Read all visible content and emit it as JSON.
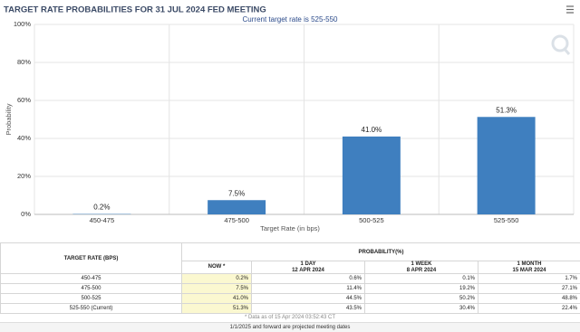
{
  "chart_data": {
    "type": "bar",
    "title": "TARGET RATE PROBABILITIES FOR 31 JUL 2024 FED MEETING",
    "subtitle": "Current target rate is 525-550",
    "x_label": "Target Rate (in bps)",
    "y_label": "Probability",
    "categories": [
      "450-475",
      "475-500",
      "500-525",
      "525-550"
    ],
    "values": [
      0.2,
      7.5,
      41.0,
      51.3
    ],
    "value_labels": [
      "0.2%",
      "7.5%",
      "41.0%",
      "51.3%"
    ],
    "color": "#3f7fbf",
    "ylim": [
      0,
      100
    ],
    "yticks": [
      {
        "value": 0,
        "label": "0%"
      },
      {
        "value": 20,
        "label": "20%"
      },
      {
        "value": 40,
        "label": "40%"
      },
      {
        "value": 60,
        "label": "60%"
      },
      {
        "value": 80,
        "label": "80%"
      },
      {
        "value": 100,
        "label": "100%"
      }
    ],
    "grid": true
  },
  "table": {
    "rate_header": "TARGET RATE (BPS)",
    "prob_header": "PROBABILITY(%)",
    "columns": [
      {
        "label": "NOW *"
      },
      {
        "label": "1 DAY",
        "date": "12 APR 2024"
      },
      {
        "label": "1 WEEK",
        "date": "8 APR 2024"
      },
      {
        "label": "1 MONTH",
        "date": "15 MAR 2024"
      }
    ],
    "rows": [
      [
        "450-475",
        "0.2%",
        "0.6%",
        "0.1%",
        "1.7%"
      ],
      [
        "475-500",
        "7.5%",
        "11.4%",
        "19.2%",
        "27.1%"
      ],
      [
        "500-525",
        "41.0%",
        "44.5%",
        "50.2%",
        "48.8%"
      ],
      [
        "525-550 (Current)",
        "51.3%",
        "43.5%",
        "30.4%",
        "22.4%"
      ]
    ]
  },
  "footnotes": [
    "* Data as of 15 Apr 2024 03:52:43 CT",
    "1/1/2025 and forward are projected meeting dates"
  ]
}
